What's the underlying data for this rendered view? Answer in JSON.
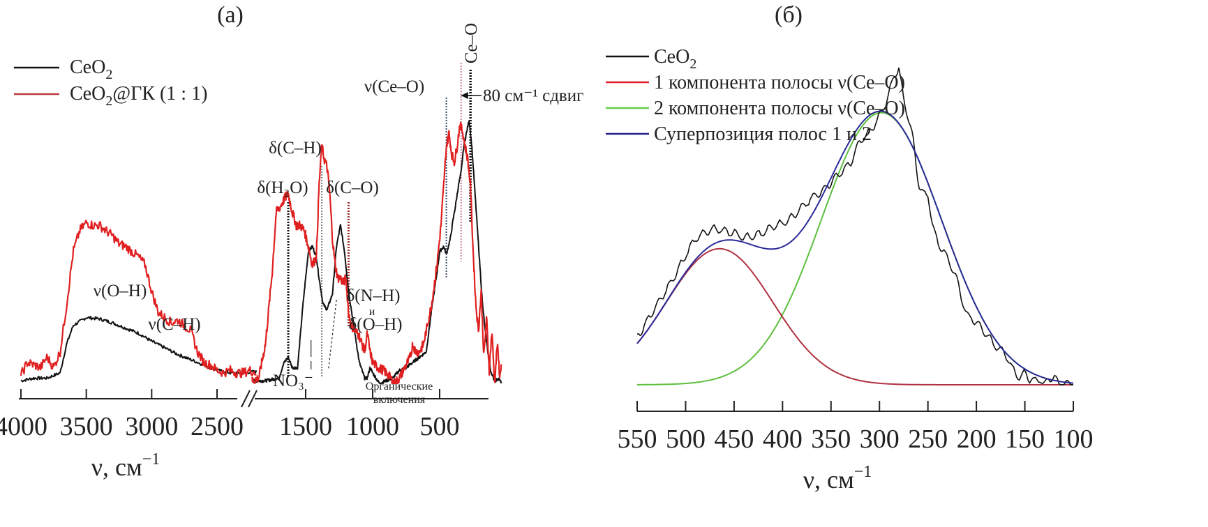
{
  "figure": {
    "panel_a_label": "(a)",
    "panel_b_label": "(б)"
  },
  "chart_data": [
    {
      "id": "panel-a",
      "type": "line",
      "title": "(a)",
      "xlabel": "ν, см⁻¹",
      "ylabel": "",
      "x_reversed": true,
      "x_break": [
        2200,
        1900
      ],
      "segments": [
        {
          "xlim": [
            4000,
            2200
          ],
          "ticks": [
            4000,
            3500,
            3000,
            2500
          ]
        },
        {
          "xlim": [
            1900,
            0
          ],
          "ticks": [
            1500,
            1000,
            500
          ]
        }
      ],
      "ylim": [
        0,
        1
      ],
      "legend": {
        "position": "top-left",
        "entries": [
          {
            "label": "CeO2",
            "label_main": "CeO",
            "label_sub": "2",
            "label_rest": "",
            "color": "#111111"
          },
          {
            "label": "CeO2@ГК (1 : 1)",
            "label_main": "CeO",
            "label_sub": "2",
            "label_rest": "@ГК (1 : 1)",
            "color": "#c0393b"
          }
        ]
      },
      "series": [
        {
          "name": "CeO2",
          "color": "#111111",
          "x": [
            4000,
            3900,
            3800,
            3750,
            3700,
            3650,
            3600,
            3500,
            3400,
            3300,
            3200,
            3100,
            3000,
            2900,
            2800,
            2700,
            2600,
            2500,
            2400,
            2300,
            2200,
            1900,
            1800,
            1700,
            1660,
            1630,
            1600,
            1560,
            1520,
            1480,
            1450,
            1420,
            1400,
            1370,
            1340,
            1300,
            1270,
            1240,
            1210,
            1180,
            1150,
            1100,
            1060,
            1040,
            1020,
            1000,
            950,
            900,
            850,
            800,
            750,
            700,
            650,
            600,
            560,
            520,
            500,
            470,
            450,
            420,
            400,
            380,
            360,
            340,
            320,
            300,
            280,
            260,
            240,
            220,
            200,
            180,
            160,
            140,
            120,
            100,
            80,
            60,
            40
          ],
          "y": [
            0.01,
            0.02,
            0.02,
            0.03,
            0.04,
            0.15,
            0.22,
            0.25,
            0.245,
            0.23,
            0.21,
            0.19,
            0.16,
            0.135,
            0.11,
            0.09,
            0.07,
            0.05,
            0.04,
            0.04,
            0.045,
            0.01,
            0.01,
            0.02,
            0.08,
            0.1,
            0.06,
            0.06,
            0.3,
            0.5,
            0.52,
            0.48,
            0.4,
            0.3,
            0.28,
            0.34,
            0.52,
            0.6,
            0.5,
            0.35,
            0.25,
            0.08,
            0.02,
            0.02,
            0.06,
            0.04,
            0.0,
            0.01,
            0.02,
            0.05,
            0.06,
            0.08,
            0.1,
            0.12,
            0.28,
            0.42,
            0.5,
            0.52,
            0.49,
            0.55,
            0.62,
            0.68,
            0.75,
            0.8,
            0.9,
            0.95,
            1.0,
            0.9,
            0.75,
            0.6,
            0.45,
            0.3,
            0.2,
            0.12,
            0.05,
            0.02,
            0.01,
            0.02,
            0.0
          ]
        },
        {
          "name": "CeO2@ГК (1 : 1)",
          "color": "#e02020",
          "x": [
            4000,
            3950,
            3900,
            3850,
            3800,
            3750,
            3700,
            3650,
            3600,
            3550,
            3500,
            3450,
            3400,
            3350,
            3300,
            3250,
            3200,
            3150,
            3100,
            3050,
            3000,
            2950,
            2900,
            2850,
            2800,
            2750,
            2700,
            2650,
            2600,
            2550,
            2500,
            2450,
            2400,
            2350,
            2300,
            2250,
            2200,
            1900,
            1850,
            1800,
            1750,
            1720,
            1690,
            1660,
            1630,
            1600,
            1570,
            1540,
            1510,
            1480,
            1450,
            1420,
            1400,
            1380,
            1360,
            1340,
            1320,
            1300,
            1280,
            1260,
            1240,
            1220,
            1200,
            1180,
            1160,
            1130,
            1100,
            1060,
            1040,
            1020,
            1000,
            960,
            920,
            880,
            840,
            800,
            760,
            720,
            700,
            680,
            650,
            620,
            600,
            560,
            520,
            490,
            470,
            450,
            430,
            410,
            390,
            370,
            350,
            330,
            310,
            290,
            270,
            250,
            230,
            210,
            190,
            170,
            150,
            130,
            110,
            90,
            70,
            50,
            40
          ],
          "y": [
            0.03,
            0.08,
            0.07,
            0.06,
            0.1,
            0.06,
            0.12,
            0.3,
            0.5,
            0.58,
            0.61,
            0.6,
            0.6,
            0.58,
            0.56,
            0.53,
            0.52,
            0.5,
            0.48,
            0.45,
            0.35,
            0.27,
            0.25,
            0.23,
            0.24,
            0.22,
            0.2,
            0.12,
            0.08,
            0.07,
            0.05,
            0.04,
            0.05,
            0.04,
            0.04,
            0.05,
            0.04,
            0.01,
            0.02,
            0.15,
            0.42,
            0.65,
            0.67,
            0.7,
            0.72,
            0.65,
            0.6,
            0.6,
            0.58,
            0.52,
            0.45,
            0.48,
            0.75,
            0.9,
            0.85,
            0.82,
            0.72,
            0.55,
            0.45,
            0.4,
            0.4,
            0.38,
            0.4,
            0.27,
            0.22,
            0.2,
            0.18,
            0.12,
            0.19,
            0.12,
            0.08,
            0.06,
            0.05,
            0.03,
            0.0,
            0.02,
            0.06,
            0.1,
            0.15,
            0.12,
            0.12,
            0.15,
            0.2,
            0.3,
            0.45,
            0.6,
            0.75,
            0.9,
            0.95,
            0.87,
            0.84,
            0.9,
            0.98,
            0.96,
            0.9,
            0.85,
            0.75,
            0.5,
            0.3,
            0.2,
            0.35,
            0.1,
            0.25,
            0.05,
            0.2,
            0.0,
            0.15,
            0.02,
            0.08
          ]
        }
      ],
      "annotations": [
        {
          "text": "ν(O–H)",
          "x": 3300
        },
        {
          "text": "ν(C–H)",
          "x": 2750
        },
        {
          "text": "δ(H₂O)",
          "x": 1630,
          "line": "black-dotted"
        },
        {
          "text": "δ(C–H)",
          "x": 1380,
          "line": "dotted"
        },
        {
          "text": "δ(C–O)",
          "x": 1180,
          "line": "red-dotted"
        },
        {
          "text": "δ(N–H)",
          "x": 1000
        },
        {
          "text": "и",
          "x": 1000
        },
        {
          "text": "δ(O–H)",
          "x": 1000
        },
        {
          "text": "NO₃⁻",
          "x": 1450
        },
        {
          "text": "Органические",
          "x": 850
        },
        {
          "text": "включения",
          "x": 850
        },
        {
          "text": "ν(Ce–O)",
          "x": 450,
          "line": "dotted"
        },
        {
          "text": "Ce–O",
          "x": 270,
          "line": "black-dotted",
          "rotated": true
        },
        {
          "text": "80 см⁻¹ сдвиг",
          "shift_from": 270,
          "shift_to": 350,
          "shift_cm": 80
        }
      ]
    },
    {
      "id": "panel-b",
      "type": "line",
      "title": "(б)",
      "xlabel": "ν, см⁻¹",
      "ylabel": "",
      "x_reversed": true,
      "xlim": [
        550,
        100
      ],
      "ticks": [
        550,
        500,
        450,
        400,
        350,
        300,
        250,
        200,
        150,
        100
      ],
      "ylim": [
        0,
        1
      ],
      "legend": {
        "position": "top-left",
        "entries": [
          {
            "label": "CeO2",
            "label_main": "CeO",
            "label_sub": "2",
            "label_rest": "",
            "color": "#111111"
          },
          {
            "label": "1 компонента полосы ν(Ce–O)",
            "label_main": "1 компонента полосы ν(Ce–O)",
            "label_sub": "",
            "label_rest": "",
            "color": "#e0202a"
          },
          {
            "label": "2 компонента полосы ν(Ce–O)",
            "label_main": "2 компонента полосы ν(Ce–O)",
            "label_sub": "",
            "label_rest": "",
            "color": "#66cc44"
          },
          {
            "label": "Суперпозиция полос 1 и 2",
            "label_main": "Суперпозиция полос 1 и 2",
            "label_sub": "",
            "label_rest": "",
            "color": "#23238e"
          }
        ]
      },
      "gaussians": [
        {
          "name": "1 компонента полосы ν(Ce–O)",
          "color": "#b03040",
          "center": 465,
          "amplitude": 0.43,
          "sigma": 55
        },
        {
          "name": "2 компонента полосы ν(Ce–O)",
          "color": "#5cbf3c",
          "center": 298,
          "amplitude": 0.86,
          "sigma": 62
        }
      ],
      "superposition": {
        "name": "Суперпозиция полос 1 и 2",
        "color": "#2a2a9a"
      },
      "series": [
        {
          "name": "CeO2",
          "color": "#111111",
          "x": [
            550,
            540,
            530,
            520,
            510,
            500,
            490,
            480,
            470,
            460,
            450,
            440,
            430,
            420,
            410,
            400,
            390,
            380,
            370,
            360,
            350,
            340,
            330,
            320,
            310,
            300,
            295,
            290,
            285,
            280,
            275,
            270,
            265,
            260,
            255,
            250,
            245,
            240,
            235,
            230,
            225,
            220,
            215,
            210,
            205,
            200,
            195,
            190,
            180,
            170,
            165,
            160,
            155,
            150,
            145,
            140,
            135,
            130,
            125,
            120,
            115,
            110,
            105,
            100
          ],
          "y": [
            0.15,
            0.2,
            0.25,
            0.3,
            0.35,
            0.41,
            0.46,
            0.48,
            0.495,
            0.485,
            0.48,
            0.465,
            0.47,
            0.48,
            0.5,
            0.51,
            0.53,
            0.56,
            0.59,
            0.61,
            0.64,
            0.67,
            0.7,
            0.77,
            0.8,
            0.85,
            0.88,
            0.92,
            0.98,
            1.0,
            0.9,
            0.84,
            0.77,
            0.64,
            0.6,
            0.6,
            0.5,
            0.45,
            0.43,
            0.4,
            0.37,
            0.33,
            0.27,
            0.22,
            0.21,
            0.2,
            0.18,
            0.16,
            0.12,
            0.1,
            0.06,
            0.04,
            0.02,
            0.04,
            0.02,
            0.01,
            0.02,
            0.0,
            0.02,
            0.03,
            0.0,
            0.01,
            0.0,
            0.0
          ]
        }
      ]
    }
  ]
}
